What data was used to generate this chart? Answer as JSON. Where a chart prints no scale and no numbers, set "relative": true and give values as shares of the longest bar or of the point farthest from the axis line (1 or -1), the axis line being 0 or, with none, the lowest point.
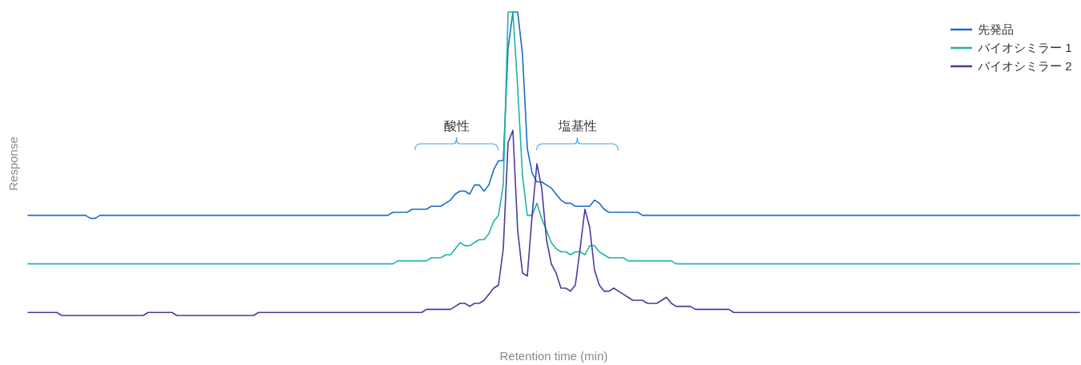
{
  "chart_data": {
    "type": "line",
    "relative": true,
    "xlabel": "Retention time (min)",
    "ylabel": "Response",
    "legend": "top right",
    "annotations": [
      "酸性",
      "塩基性"
    ],
    "categories": [
      null,
      null,
      null,
      null,
      null,
      null,
      null,
      null,
      null,
      null,
      null,
      null,
      null,
      null,
      null,
      null,
      null,
      null,
      null,
      null,
      null,
      null,
      null,
      null,
      null,
      null,
      null,
      null,
      null,
      null,
      null,
      null,
      null,
      null,
      null,
      null,
      null,
      null,
      null,
      null,
      null,
      null,
      null,
      null,
      null,
      null,
      null,
      null,
      null,
      null,
      null,
      null,
      null,
      null,
      null,
      null,
      null,
      null,
      null,
      null,
      null,
      null,
      null,
      null,
      null,
      null,
      null,
      null,
      null,
      null,
      null,
      null,
      null,
      null,
      null,
      null,
      null,
      null,
      null,
      null,
      null,
      null,
      null,
      null,
      null,
      null,
      null,
      null,
      null,
      null,
      null,
      null,
      null,
      null,
      null,
      null,
      null,
      null,
      null,
      null,
      null,
      null,
      null,
      null,
      null,
      null,
      null,
      null,
      null,
      null,
      null,
      null,
      null,
      null,
      null,
      null,
      null,
      null,
      null,
      null,
      null,
      null,
      null,
      null,
      null,
      null,
      null,
      null,
      null,
      null,
      null,
      null,
      null,
      null,
      null,
      null,
      null,
      null,
      null,
      null,
      null,
      null,
      null,
      null,
      null,
      null,
      null,
      null,
      null,
      null,
      null,
      null,
      null,
      null,
      null,
      null,
      null,
      null,
      null,
      null,
      null,
      null,
      null,
      null,
      null,
      null,
      null,
      null,
      null,
      null,
      null,
      null,
      null,
      null,
      null,
      null,
      null,
      null,
      null,
      null,
      null,
      null,
      null,
      null,
      null,
      null,
      null,
      null,
      null,
      null,
      null,
      null,
      null,
      null,
      null,
      null,
      null,
      null,
      null,
      null,
      null,
      null,
      null,
      null,
      null,
      null,
      null,
      null,
      null,
      null,
      null,
      null,
      null,
      null,
      null,
      null,
      null,
      null,
      null,
      null
    ],
    "series": [
      {
        "name": "先発品",
        "color": "#1b6ec2",
        "values": [
          0.33,
          0.33,
          0.33,
          0.33,
          0.33,
          0.33,
          0.33,
          0.33,
          0.33,
          0.33,
          0.33,
          0.33,
          0.33,
          0.32,
          0.32,
          0.33,
          0.33,
          0.33,
          0.33,
          0.33,
          0.33,
          0.33,
          0.33,
          0.33,
          0.33,
          0.33,
          0.33,
          0.33,
          0.33,
          0.33,
          0.33,
          0.33,
          0.33,
          0.33,
          0.33,
          0.33,
          0.33,
          0.33,
          0.33,
          0.33,
          0.33,
          0.33,
          0.33,
          0.33,
          0.33,
          0.33,
          0.33,
          0.33,
          0.33,
          0.33,
          0.33,
          0.33,
          0.33,
          0.33,
          0.33,
          0.33,
          0.33,
          0.33,
          0.33,
          0.33,
          0.33,
          0.33,
          0.33,
          0.33,
          0.33,
          0.33,
          0.33,
          0.33,
          0.33,
          0.33,
          0.33,
          0.33,
          0.33,
          0.33,
          0.33,
          0.33,
          0.34,
          0.34,
          0.34,
          0.34,
          0.35,
          0.35,
          0.35,
          0.35,
          0.36,
          0.36,
          0.36,
          0.37,
          0.38,
          0.4,
          0.41,
          0.41,
          0.4,
          0.43,
          0.43,
          0.41,
          0.43,
          0.48,
          0.51,
          0.51,
          0.88,
          1.0,
          1.0,
          0.86,
          0.55,
          0.47,
          0.44,
          0.44,
          0.43,
          0.42,
          0.4,
          0.38,
          0.37,
          0.37,
          0.36,
          0.36,
          0.36,
          0.36,
          0.38,
          0.37,
          0.35,
          0.34,
          0.34,
          0.34,
          0.34,
          0.34,
          0.34,
          0.34,
          0.33,
          0.33,
          0.33,
          0.33,
          0.33,
          0.33,
          0.33,
          0.33,
          0.33,
          0.33,
          0.33,
          0.33,
          0.33,
          0.33,
          0.33,
          0.33,
          0.33,
          0.33,
          0.33,
          0.33,
          0.33,
          0.33,
          0.33,
          0.33,
          0.33,
          0.33,
          0.33,
          0.33,
          0.33,
          0.33,
          0.33,
          0.33,
          0.33,
          0.33,
          0.33,
          0.33,
          0.33,
          0.33,
          0.33,
          0.33,
          0.33,
          0.33,
          0.33,
          0.33,
          0.33,
          0.33,
          0.33,
          0.33,
          0.33,
          0.33,
          0.33,
          0.33,
          0.33,
          0.33,
          0.33,
          0.33,
          0.33,
          0.33,
          0.33,
          0.33,
          0.33,
          0.33,
          0.33,
          0.33,
          0.33,
          0.33,
          0.33,
          0.33,
          0.33,
          0.33,
          0.33,
          0.33,
          0.33,
          0.33,
          0.33,
          0.33,
          0.33,
          0.33,
          0.33,
          0.33,
          0.33,
          0.33,
          0.33,
          0.33,
          0.33,
          0.33,
          0.33,
          0.33,
          0.33,
          0.33,
          0.33,
          0.33
        ]
      },
      {
        "name": "バイオシミラー 1",
        "color": "#1db5a5",
        "values": [
          0.17,
          0.17,
          0.17,
          0.17,
          0.17,
          0.17,
          0.17,
          0.17,
          0.17,
          0.17,
          0.17,
          0.17,
          0.17,
          0.17,
          0.17,
          0.17,
          0.17,
          0.17,
          0.17,
          0.17,
          0.17,
          0.17,
          0.17,
          0.17,
          0.17,
          0.17,
          0.17,
          0.17,
          0.17,
          0.17,
          0.17,
          0.17,
          0.17,
          0.17,
          0.17,
          0.17,
          0.17,
          0.17,
          0.17,
          0.17,
          0.17,
          0.17,
          0.17,
          0.17,
          0.17,
          0.17,
          0.17,
          0.17,
          0.17,
          0.17,
          0.17,
          0.17,
          0.17,
          0.17,
          0.17,
          0.17,
          0.17,
          0.17,
          0.17,
          0.17,
          0.17,
          0.17,
          0.17,
          0.17,
          0.17,
          0.17,
          0.17,
          0.17,
          0.17,
          0.17,
          0.17,
          0.17,
          0.17,
          0.17,
          0.17,
          0.17,
          0.17,
          0.18,
          0.18,
          0.18,
          0.18,
          0.18,
          0.18,
          0.18,
          0.19,
          0.19,
          0.19,
          0.2,
          0.2,
          0.22,
          0.24,
          0.23,
          0.23,
          0.24,
          0.25,
          0.25,
          0.27,
          0.31,
          0.33,
          0.43,
          1.0,
          1.0,
          0.75,
          0.46,
          0.33,
          0.33,
          0.37,
          0.32,
          0.28,
          0.24,
          0.22,
          0.21,
          0.21,
          0.2,
          0.21,
          0.21,
          0.2,
          0.23,
          0.23,
          0.21,
          0.2,
          0.19,
          0.19,
          0.19,
          0.19,
          0.18,
          0.18,
          0.18,
          0.18,
          0.18,
          0.18,
          0.18,
          0.18,
          0.18,
          0.18,
          0.17,
          0.17,
          0.17,
          0.17,
          0.17,
          0.17,
          0.17,
          0.17,
          0.17,
          0.17,
          0.17,
          0.17,
          0.17,
          0.17,
          0.17,
          0.17,
          0.17,
          0.17,
          0.17,
          0.17,
          0.17,
          0.17,
          0.17,
          0.17,
          0.17,
          0.17,
          0.17,
          0.17,
          0.17,
          0.17,
          0.17,
          0.17,
          0.17,
          0.17,
          0.17,
          0.17,
          0.17,
          0.17,
          0.17,
          0.17,
          0.17,
          0.17,
          0.17,
          0.17,
          0.17,
          0.17,
          0.17,
          0.17,
          0.17,
          0.17,
          0.17,
          0.17,
          0.17,
          0.17,
          0.17,
          0.17,
          0.17,
          0.17,
          0.17,
          0.17,
          0.17,
          0.17,
          0.17,
          0.17,
          0.17,
          0.17,
          0.17,
          0.17,
          0.17,
          0.17,
          0.17,
          0.17,
          0.17,
          0.17,
          0.17,
          0.17,
          0.17,
          0.17,
          0.17,
          0.17,
          0.17,
          0.17,
          0.17,
          0.17,
          0.17
        ]
      },
      {
        "name": "バイオシミラー 2",
        "color": "#4a3a9e",
        "values": [
          0.01,
          0.01,
          0.01,
          0.01,
          0.01,
          0.01,
          0.01,
          0.0,
          0.0,
          0.0,
          0.0,
          0.0,
          0.0,
          0.0,
          0.0,
          0.0,
          0.0,
          0.0,
          0.0,
          0.0,
          0.0,
          0.0,
          0.0,
          0.0,
          0.0,
          0.01,
          0.01,
          0.01,
          0.01,
          0.01,
          0.01,
          0.0,
          0.0,
          0.0,
          0.0,
          0.0,
          0.0,
          0.0,
          0.0,
          0.0,
          0.0,
          0.0,
          0.0,
          0.0,
          0.0,
          0.0,
          0.0,
          0.0,
          0.01,
          0.01,
          0.01,
          0.01,
          0.01,
          0.01,
          0.01,
          0.01,
          0.01,
          0.01,
          0.01,
          0.01,
          0.01,
          0.01,
          0.01,
          0.01,
          0.01,
          0.01,
          0.01,
          0.01,
          0.01,
          0.01,
          0.01,
          0.01,
          0.01,
          0.01,
          0.01,
          0.01,
          0.01,
          0.01,
          0.01,
          0.01,
          0.01,
          0.01,
          0.01,
          0.02,
          0.02,
          0.02,
          0.02,
          0.02,
          0.02,
          0.03,
          0.04,
          0.04,
          0.03,
          0.04,
          0.04,
          0.05,
          0.07,
          0.09,
          0.1,
          0.22,
          0.57,
          0.61,
          0.28,
          0.14,
          0.13,
          0.33,
          0.5,
          0.42,
          0.25,
          0.17,
          0.14,
          0.09,
          0.09,
          0.08,
          0.1,
          0.22,
          0.35,
          0.29,
          0.15,
          0.1,
          0.08,
          0.08,
          0.09,
          0.08,
          0.07,
          0.06,
          0.05,
          0.05,
          0.05,
          0.04,
          0.04,
          0.04,
          0.05,
          0.06,
          0.04,
          0.03,
          0.03,
          0.03,
          0.03,
          0.02,
          0.02,
          0.02,
          0.02,
          0.02,
          0.02,
          0.02,
          0.02,
          0.01,
          0.01,
          0.01,
          0.01,
          0.01,
          0.01,
          0.01,
          0.01,
          0.01,
          0.01,
          0.01,
          0.01,
          0.01,
          0.01,
          0.01,
          0.01,
          0.01,
          0.01,
          0.01,
          0.01,
          0.01,
          0.01,
          0.01,
          0.01,
          0.01,
          0.01,
          0.01,
          0.01,
          0.01,
          0.01,
          0.01,
          0.01,
          0.01,
          0.01,
          0.01,
          0.01,
          0.01,
          0.01,
          0.01,
          0.01,
          0.01,
          0.01,
          0.01,
          0.01,
          0.01,
          0.01,
          0.01,
          0.01,
          0.01,
          0.01,
          0.01,
          0.01,
          0.01,
          0.01,
          0.01,
          0.01,
          0.01,
          0.01,
          0.01,
          0.01,
          0.01,
          0.01,
          0.01,
          0.01,
          0.01,
          0.01,
          0.01,
          0.01,
          0.01,
          0.01,
          0.01,
          0.01,
          0.01
        ]
      }
    ]
  }
}
